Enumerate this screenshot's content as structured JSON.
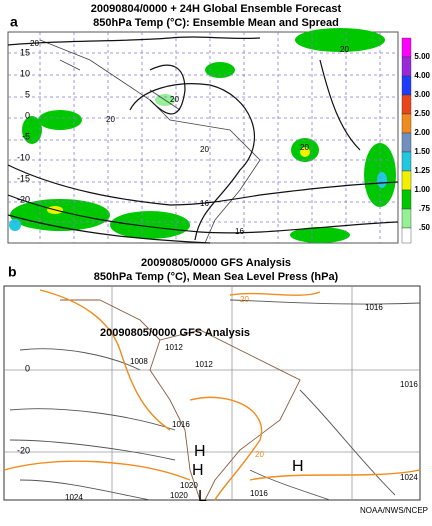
{
  "panel_a": {
    "label": "a",
    "title_lines": [
      "20090804/0000 + 24H Global Ensemble Forecast",
      "850hPa Temp (°C): Ensemble Mean and Spread"
    ],
    "lat_labels": [
      "15",
      "10",
      "5",
      "0",
      "-5",
      "-10",
      "-15",
      "-20"
    ],
    "contour_labels": [
      "20",
      "20",
      "20",
      "16",
      "20",
      "20",
      "16",
      "20"
    ],
    "colorbar": [
      {
        "value": 5,
        "label": "5.00",
        "color": "#ff00ff"
      },
      {
        "value": 4,
        "label": "4.00",
        "color": "#9a28d8"
      },
      {
        "value": 3,
        "label": "3.00",
        "color": "#1e3cff"
      },
      {
        "value": 2.5,
        "label": "2.50",
        "color": "#e8451a"
      },
      {
        "value": 2,
        "label": "2.00",
        "color": "#f08c1e"
      },
      {
        "value": 1.5,
        "label": "1.50",
        "color": "#7090c0"
      },
      {
        "value": 1.25,
        "label": "1.25",
        "color": "#20c8e0"
      },
      {
        "value": 1,
        "label": "1.00",
        "color": "#f0f000"
      },
      {
        "value": 0.75,
        "label": ".75",
        "color": "#00c800"
      },
      {
        "value": 0.5,
        "label": ".50",
        "color": "#96f096"
      }
    ]
  },
  "panel_b": {
    "label": "b",
    "title_lines": [
      "20090805/0000  GFS Analysis",
      "850hPa Temp (°C), Mean Sea Level Press (hPa)"
    ],
    "inner_title": "20090805/0000  GFS Analysis",
    "lat_labels": [
      "0",
      "-20"
    ],
    "pressure_labels": [
      "1016",
      "1012",
      "1012",
      "1008",
      "1016",
      "1016",
      "1020",
      "1020",
      "1024",
      "1016",
      "1024"
    ],
    "temp_labels": [
      "20",
      "20"
    ],
    "centers": [
      "H",
      "H",
      "H",
      "L"
    ]
  },
  "credit": "NOAA/NWS/NCEP"
}
